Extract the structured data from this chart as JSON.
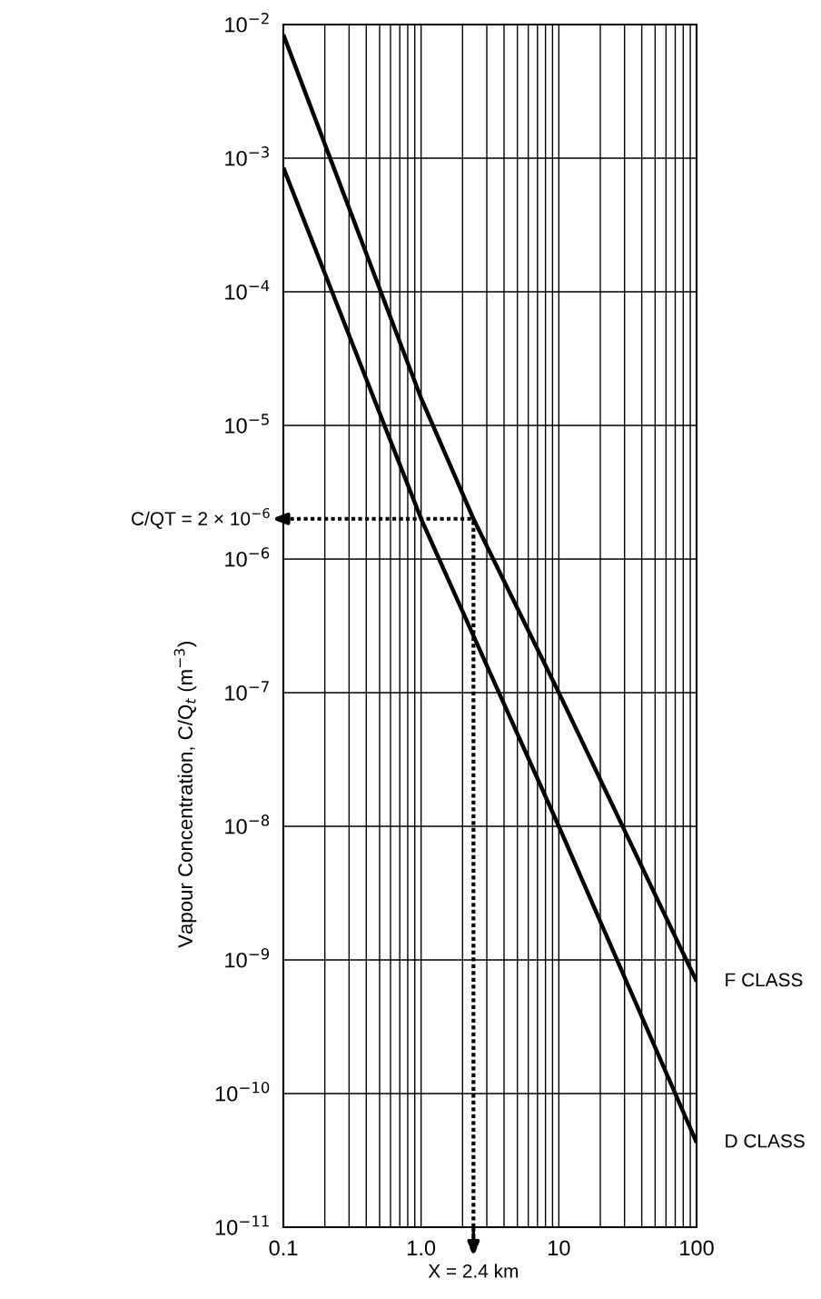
{
  "chart_data": {
    "type": "line",
    "ylabel": "Vapour Concentration, C/Q$_{t}$ (m$^{−3}$)",
    "series": [
      {
        "name": "F CLASS",
        "color": "#000000",
        "x": [
          0.1,
          1,
          2.4,
          10,
          100
        ],
        "values": [
          0.0084,
          1.6e-05,
          2e-06,
          1e-07,
          6.9e-10
        ]
      },
      {
        "name": "D CLASS",
        "color": "#000000",
        "x": [
          0.1,
          1,
          10,
          100
        ],
        "values": [
          0.00085,
          2e-06,
          1e-08,
          4.3e-11
        ]
      }
    ],
    "log": "xy",
    "xlim": [
      0.1,
      100
    ],
    "xticks": [
      0.1,
      {
        "value": 1,
        "label": "1.0"
      },
      10,
      100
    ],
    "ylim": [
      1e-11,
      0.01
    ],
    "yticks": [
      {
        "value": 1e-11,
        "label": "10$^{−11}$"
      },
      {
        "value": 1e-10,
        "label": "10$^{−10}$"
      },
      {
        "value": 1e-09,
        "label": "10$^{−9}$"
      },
      {
        "value": 1e-08,
        "label": "10$^{−8}$"
      },
      {
        "value": 1e-07,
        "label": "10$^{−7}$"
      },
      {
        "value": 1e-06,
        "label": "10$^{−6}$"
      },
      {
        "value": 1e-05,
        "label": "10$^{−5}$"
      },
      {
        "value": 0.0001,
        "label": "10$^{−4}$"
      },
      {
        "value": 0.001,
        "label": "10$^{−3}$"
      },
      {
        "value": 0.01,
        "label": "10$^{−2}$"
      }
    ],
    "grid": true,
    "line_style": "solid",
    "ref_lines": [
      {
        "axis": "y",
        "value": 2e-06,
        "label": "C/QT = 2 × 10$^{−6}$",
        "line_style": "dotted"
      },
      {
        "axis": "x",
        "value": 2.4,
        "label": "X = 2.4 km",
        "line_style": "dotted"
      }
    ]
  }
}
